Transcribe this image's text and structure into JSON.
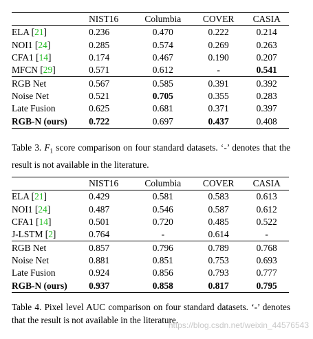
{
  "table3": {
    "headers": [
      "NIST16",
      "Columbia",
      "COVER",
      "CASIA"
    ],
    "rows": [
      {
        "name": "ELA",
        "ref": "21",
        "values": [
          "0.236",
          "0.470",
          "0.222",
          "0.214"
        ],
        "bold": [
          false,
          false,
          false,
          false
        ]
      },
      {
        "name": "NOI1",
        "ref": "24",
        "values": [
          "0.285",
          "0.574",
          "0.269",
          "0.263"
        ],
        "bold": [
          false,
          false,
          false,
          false
        ]
      },
      {
        "name": "CFA1",
        "ref": "14",
        "values": [
          "0.174",
          "0.467",
          "0.190",
          "0.207"
        ],
        "bold": [
          false,
          false,
          false,
          false
        ]
      },
      {
        "name": "MFCN",
        "ref": "29",
        "values": [
          "0.571",
          "0.612",
          "-",
          "0.541"
        ],
        "bold": [
          false,
          false,
          false,
          true
        ]
      },
      {
        "name": "RGB Net",
        "ref": "",
        "values": [
          "0.567",
          "0.585",
          "0.391",
          "0.392"
        ],
        "bold": [
          false,
          false,
          false,
          false
        ]
      },
      {
        "name": "Noise Net",
        "ref": "",
        "values": [
          "0.521",
          "0.705",
          "0.355",
          "0.283"
        ],
        "bold": [
          false,
          true,
          false,
          false
        ]
      },
      {
        "name": "Late Fusion",
        "ref": "",
        "values": [
          "0.625",
          "0.681",
          "0.371",
          "0.397"
        ],
        "bold": [
          false,
          false,
          false,
          false
        ]
      },
      {
        "name": "RGB-N (ours)",
        "ref": "",
        "values": [
          "0.722",
          "0.697",
          "0.437",
          "0.408"
        ],
        "bold": [
          true,
          false,
          true,
          false
        ],
        "name_bold": true
      }
    ],
    "caption_prefix": "Table 3.",
    "caption_f": "F",
    "caption_sub": "1",
    "caption_rest": " score comparison on four standard datasets. ‘-’ denotes that the result is not available in the literature."
  },
  "table4": {
    "headers": [
      "NIST16",
      "Columbia",
      "COVER",
      "CASIA"
    ],
    "rows": [
      {
        "name": "ELA",
        "ref": "21",
        "values": [
          "0.429",
          "0.581",
          "0.583",
          "0.613"
        ],
        "bold": [
          false,
          false,
          false,
          false
        ]
      },
      {
        "name": "NOI1",
        "ref": "24",
        "values": [
          "0.487",
          "0.546",
          "0.587",
          "0.612"
        ],
        "bold": [
          false,
          false,
          false,
          false
        ]
      },
      {
        "name": "CFA1",
        "ref": "14",
        "values": [
          "0.501",
          "0.720",
          "0.485",
          "0.522"
        ],
        "bold": [
          false,
          false,
          false,
          false
        ]
      },
      {
        "name": "J-LSTM",
        "ref": "2",
        "values": [
          "0.764",
          "-",
          "0.614",
          "-"
        ],
        "bold": [
          false,
          false,
          false,
          false
        ]
      },
      {
        "name": "RGB Net",
        "ref": "",
        "values": [
          "0.857",
          "0.796",
          "0.789",
          "0.768"
        ],
        "bold": [
          false,
          false,
          false,
          false
        ]
      },
      {
        "name": "Noise Net",
        "ref": "",
        "values": [
          "0.881",
          "0.851",
          "0.753",
          "0.693"
        ],
        "bold": [
          false,
          false,
          false,
          false
        ]
      },
      {
        "name": "Late Fusion",
        "ref": "",
        "values": [
          "0.924",
          "0.856",
          "0.793",
          "0.777"
        ],
        "bold": [
          false,
          false,
          false,
          false
        ]
      },
      {
        "name": "RGB-N (ours)",
        "ref": "",
        "values": [
          "0.937",
          "0.858",
          "0.817",
          "0.795"
        ],
        "bold": [
          true,
          true,
          true,
          true
        ],
        "name_bold": true
      }
    ],
    "caption": "Table 4. Pixel level AUC comparison on four standard datasets. ‘-’ denotes that the result is not available in the literature."
  },
  "watermark": "https://blog.csdn.net/weixin_44576543",
  "colors": {
    "reference_link": "#22bb22",
    "watermark": "#c8c8c8"
  }
}
